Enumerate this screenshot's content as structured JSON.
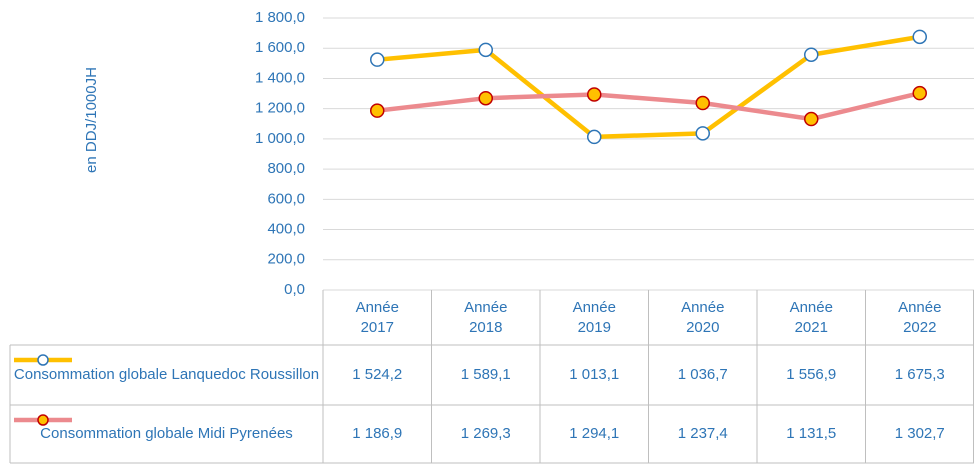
{
  "chart_data": {
    "type": "line",
    "y_label": "en DDJ/1000JH",
    "categories": [
      "Année 2017",
      "Année 2018",
      "Année 2019",
      "Année 2020",
      "Année 2021",
      "Année 2022"
    ],
    "series": [
      {
        "name": "Consommation globale Lanquedoc Roussillon",
        "color": "#ffc000",
        "marker_fill": "#ffffff",
        "marker_stroke": "#2e75b6",
        "values": [
          1524.2,
          1589.1,
          1013.1,
          1036.7,
          1556.9,
          1675.3
        ],
        "value_labels": [
          "1 524,2",
          "1 589,1",
          "1 013,1",
          "1 036,7",
          "1 556,9",
          "1 675,3"
        ]
      },
      {
        "name": "Consommation globale Midi Pyrenées",
        "color": "#ec8a8e",
        "marker_fill": "#ffc000",
        "marker_stroke": "#c00000",
        "values": [
          1186.9,
          1269.3,
          1294.1,
          1237.4,
          1131.5,
          1302.7
        ],
        "value_labels": [
          "1 186,9",
          "1 269,3",
          "1 294,1",
          "1 237,4",
          "1 131,5",
          "1 302,7"
        ]
      }
    ],
    "ylim": [
      0,
      1800
    ],
    "yticks": [
      {
        "value": 0,
        "label": "0,0"
      },
      {
        "value": 200,
        "label": "200,0"
      },
      {
        "value": 400,
        "label": "400,0"
      },
      {
        "value": 600,
        "label": "600,0"
      },
      {
        "value": 800,
        "label": "800,0"
      },
      {
        "value": 1000,
        "label": "1 000,0"
      },
      {
        "value": 1200,
        "label": "1 200,0"
      },
      {
        "value": 1400,
        "label": "1 400,0"
      },
      {
        "value": 1600,
        "label": "1 600,0"
      },
      {
        "value": 1800,
        "label": "1 800,0"
      }
    ],
    "grid": true,
    "data_table": true
  }
}
